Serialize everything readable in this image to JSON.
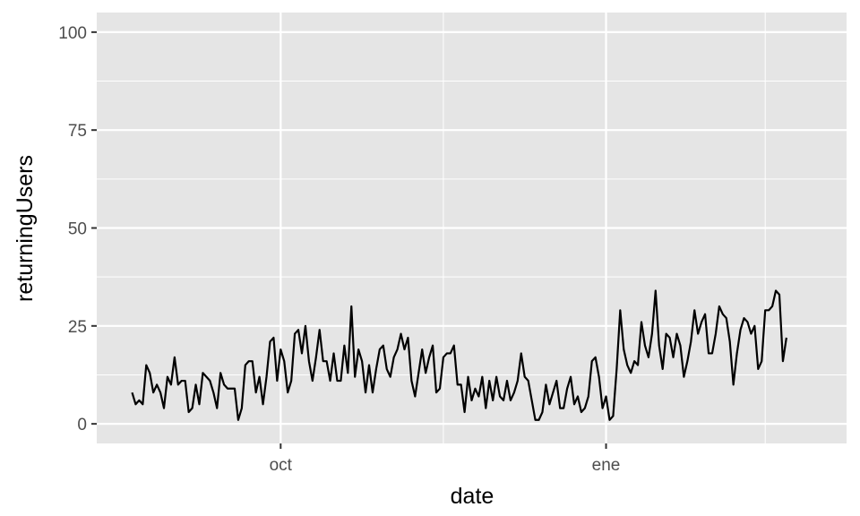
{
  "chart_data": {
    "type": "line",
    "xlabel": "date",
    "ylabel": "returningUsers",
    "ylim": [
      -5,
      105
    ],
    "y_ticks": [
      0,
      25,
      50,
      75,
      100
    ],
    "x_range": [
      "2018-08-10",
      "2019-03-10"
    ],
    "x_ticks": [
      {
        "date": "2018-10-01",
        "label": "oct"
      },
      {
        "date": "2019-01-01",
        "label": "ene"
      }
    ],
    "x_minor_ticks": [
      "2018-08-01",
      "2018-11-16",
      "2019-02-15"
    ],
    "grid": true,
    "panel_color": "#e5e5e5",
    "grid_color": "#ffffff",
    "line_color": "#000000",
    "x_start": "2018-08-20",
    "values": [
      8,
      5,
      6,
      5,
      15,
      13,
      8,
      10,
      8,
      4,
      12,
      10,
      17,
      10,
      11,
      11,
      3,
      4,
      10,
      5,
      13,
      12,
      11,
      8,
      4,
      13,
      10,
      9,
      9,
      9,
      1,
      4,
      15,
      16,
      16,
      8,
      12,
      5,
      12,
      21,
      22,
      11,
      19,
      16,
      8,
      11,
      23,
      24,
      18,
      25,
      16,
      11,
      17,
      24,
      16,
      16,
      11,
      18,
      11,
      11,
      20,
      13,
      30,
      12,
      19,
      16,
      8,
      15,
      8,
      14,
      19,
      20,
      14,
      12,
      17,
      19,
      23,
      19,
      22,
      11,
      7,
      13,
      19,
      13,
      17,
      20,
      8,
      9,
      17,
      18,
      18,
      20,
      10,
      10,
      3,
      12,
      6,
      9,
      7,
      12,
      4,
      11,
      6,
      12,
      7,
      6,
      11,
      6,
      8,
      11,
      18,
      12,
      11,
      6,
      1,
      1,
      3,
      10,
      5,
      8,
      11,
      4,
      4,
      9,
      12,
      5,
      7,
      3,
      4,
      7,
      16,
      17,
      12,
      4,
      7,
      1,
      2,
      14,
      29,
      19,
      15,
      13,
      16,
      15,
      26,
      20,
      17,
      23,
      34,
      20,
      14,
      23,
      22,
      17,
      23,
      20,
      12,
      16,
      21,
      29,
      23,
      26,
      28,
      18,
      18,
      23,
      30,
      28,
      27,
      21,
      10,
      18,
      24,
      27,
      26,
      23,
      25,
      14,
      16,
      29,
      29,
      30,
      34,
      33,
      16,
      22
    ]
  }
}
